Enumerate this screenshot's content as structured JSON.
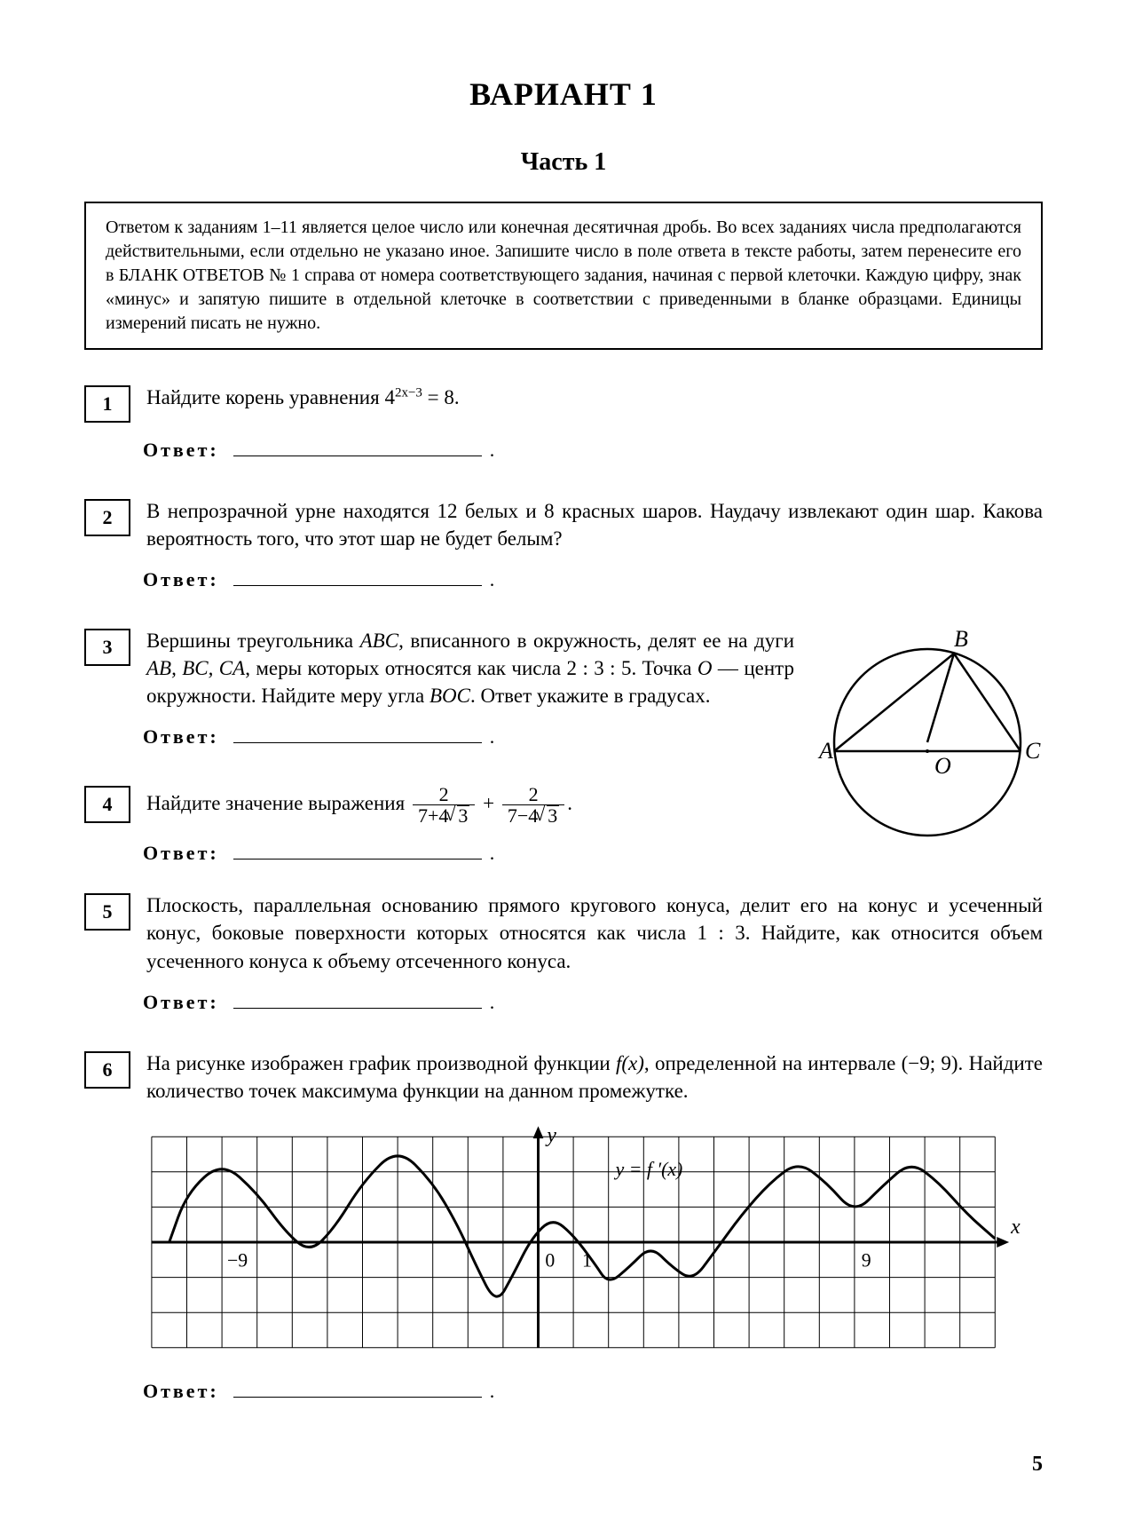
{
  "title": "ВАРИАНТ 1",
  "part": "Часть 1",
  "instruction": "Ответом к заданиям 1–11 является целое число или конечная десятичная дробь. Во всех заданиях числа предполагаются действительными, если отдельно не указано иное. Запишите число в поле ответа в тексте работы, затем перенесите его в БЛАНК ОТВЕТОВ № 1 справа от номера соответствующего задания, начиная с первой клеточки. Каждую цифру, знак «минус» и запятую пишите в отдельной клеточке в соответствии с приведенными в бланке образцами. Единицы измерений писать не нужно.",
  "answer_label": "Ответ:",
  "problems": {
    "p1": {
      "num": "1",
      "prefix": "Найдите корень уравнения  4",
      "exp": "2x−3",
      "suffix": " = 8."
    },
    "p2": {
      "num": "2",
      "text": "В непрозрачной урне находятся 12 белых и 8 красных шаров. Наудачу извлекают один шар. Какова вероятность того, что этот шар не будет белым?"
    },
    "p3": {
      "num": "3",
      "text_pre": "Вершины треугольника ",
      "abc": "ABC",
      "text_mid1": ", вписанного в окружность, делят ее на дуги ",
      "arcs": "AB, BC, CA",
      "text_mid2": ", меры которых относятся как числа 2 : 3 : 5. Точка ",
      "o": "O",
      "text_mid3": " — центр окружности. Найдите меру угла ",
      "boc": "BOC",
      "text_end": ". Ответ укажите в градусах."
    },
    "p4": {
      "num": "4",
      "prefix": "Найдите значение выражения  "
    },
    "p5": {
      "num": "5",
      "text": "Плоскость, параллельная основанию прямого кругового конуса, делит его на конус и усеченный конус, боковые поверхности которых относятся как числа 1 : 3. Найдите, как относится объем усеченного конуса к объему отсеченного конуса."
    },
    "p6": {
      "num": "6",
      "pre": "На рисунке изображен график производной функции ",
      "fx": "f(x)",
      "mid": ", определенной на интервале (−9; 9). Найдите количество точек максимума функции на данном промежутке."
    }
  },
  "circle_labels": {
    "A": "A",
    "B": "B",
    "C": "C",
    "O": "O"
  },
  "graph": {
    "ylabel": "y",
    "xlabel": "x",
    "fprime": "y = f ′(x)",
    "m9": "−9",
    "zero": "0",
    "one": "1",
    "p9": "9",
    "cols": 24,
    "rows": 6,
    "cell": 40,
    "axis_y_col": 11,
    "axis_x_row": 3,
    "curve_points": [
      [
        0.5,
        3
      ],
      [
        1,
        1.6
      ],
      [
        2,
        0.7
      ],
      [
        3,
        1.6
      ],
      [
        3.8,
        2.7
      ],
      [
        4.5,
        3.3
      ],
      [
        5.2,
        2.6
      ],
      [
        6,
        1.3
      ],
      [
        7,
        0.3
      ],
      [
        8,
        1.3
      ],
      [
        8.7,
        2.5
      ],
      [
        9.2,
        3.6
      ],
      [
        9.8,
        4.8
      ],
      [
        10.3,
        3.9
      ],
      [
        10.8,
        2.9
      ],
      [
        11.4,
        2.3
      ],
      [
        12,
        2.8
      ],
      [
        12.6,
        3.6
      ],
      [
        13,
        4.2
      ],
      [
        13.6,
        3.7
      ],
      [
        14.2,
        3.1
      ],
      [
        14.8,
        3.7
      ],
      [
        15.4,
        4.1
      ],
      [
        16,
        3.3
      ],
      [
        16.8,
        2.2
      ],
      [
        17.6,
        1.3
      ],
      [
        18.4,
        0.7
      ],
      [
        19.2,
        1.3
      ],
      [
        20,
        2.2
      ],
      [
        20.8,
        1.4
      ],
      [
        21.6,
        0.7
      ],
      [
        22.4,
        1.3
      ],
      [
        23.2,
        2.2
      ],
      [
        24,
        2.9
      ]
    ]
  },
  "page_number": "5"
}
